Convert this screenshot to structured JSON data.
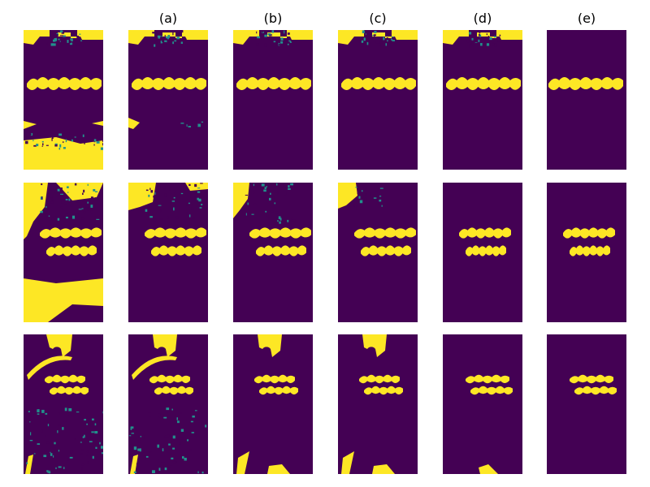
{
  "column_labels": [
    "(a)",
    "(b)",
    "(c)",
    "(d)",
    "(e)"
  ]
}
